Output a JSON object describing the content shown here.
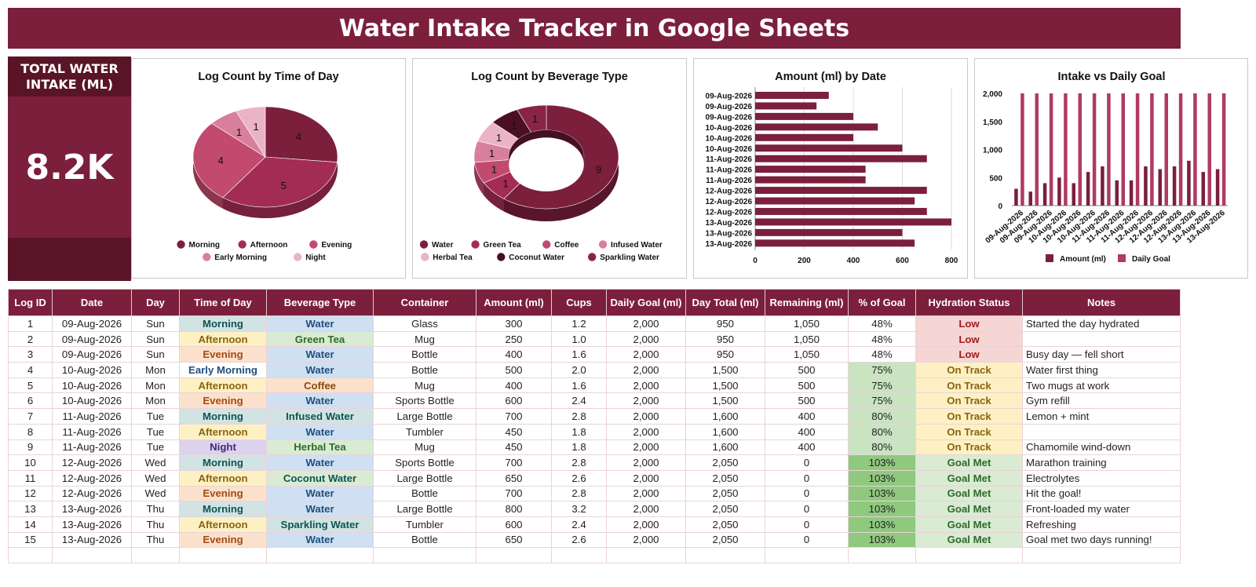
{
  "title": "Water Intake Tracker in Google Sheets",
  "kpi": {
    "label": "TOTAL WATER INTAKE (ML)",
    "value": "8.2K"
  },
  "colors": {
    "brand": "#7b1f3c",
    "brand_dark": "#5a1428",
    "series_amount": "#7b1f3c",
    "series_goal": "#b03a60"
  },
  "chart_data": [
    {
      "type": "pie",
      "title": "Log Count by Time of Day",
      "categories": [
        "Morning",
        "Afternoon",
        "Evening",
        "Early Morning",
        "Night"
      ],
      "values": [
        4,
        5,
        4,
        1,
        1
      ],
      "colors": [
        "#7b1f3c",
        "#a32c55",
        "#c14a6e",
        "#d77f9c",
        "#ebb4c6"
      ],
      "legend": "bottom"
    },
    {
      "type": "pie",
      "title": "Log Count by Beverage Type",
      "categories": [
        "Water",
        "Green Tea",
        "Coffee",
        "Infused Water",
        "Herbal Tea",
        "Coconut Water",
        "Sparkling Water"
      ],
      "values": [
        9,
        1,
        1,
        1,
        1,
        1,
        1
      ],
      "colors": [
        "#7b1f3c",
        "#a32c55",
        "#c14a6e",
        "#d77f9c",
        "#ebb4c6",
        "#4a0f22",
        "#8a2446"
      ],
      "donut": true,
      "legend": "bottom"
    },
    {
      "type": "bar",
      "orientation": "horizontal",
      "title": "Amount (ml) by Date",
      "categories": [
        "09-Aug-2026",
        "09-Aug-2026",
        "09-Aug-2026",
        "10-Aug-2026",
        "10-Aug-2026",
        "10-Aug-2026",
        "11-Aug-2026",
        "11-Aug-2026",
        "11-Aug-2026",
        "12-Aug-2026",
        "12-Aug-2026",
        "12-Aug-2026",
        "13-Aug-2026",
        "13-Aug-2026",
        "13-Aug-2026"
      ],
      "values": [
        300,
        250,
        400,
        500,
        400,
        600,
        700,
        450,
        450,
        700,
        650,
        700,
        800,
        600,
        650
      ],
      "xlim": [
        0,
        800
      ],
      "xticks": [
        "0",
        "200",
        "400",
        "600",
        "800"
      ],
      "grid": true
    },
    {
      "type": "bar",
      "title": "Intake vs Daily Goal",
      "categories": [
        "09-Aug-2026",
        "09-Aug-2026",
        "09-Aug-2026",
        "10-Aug-2026",
        "10-Aug-2026",
        "10-Aug-2026",
        "11-Aug-2026",
        "11-Aug-2026",
        "11-Aug-2026",
        "12-Aug-2026",
        "12-Aug-2026",
        "12-Aug-2026",
        "13-Aug-2026",
        "13-Aug-2026",
        "13-Aug-2026"
      ],
      "series": [
        {
          "name": "Amount (ml)",
          "values": [
            300,
            250,
            400,
            500,
            400,
            600,
            700,
            450,
            450,
            700,
            650,
            700,
            800,
            600,
            650
          ]
        },
        {
          "name": "Daily Goal",
          "values": [
            2000,
            2000,
            2000,
            2000,
            2000,
            2000,
            2000,
            2000,
            2000,
            2000,
            2000,
            2000,
            2000,
            2000,
            2000
          ]
        }
      ],
      "ylim": [
        0,
        2000
      ],
      "yticks": [
        "0",
        "500",
        "1,000",
        "1,500",
        "2,000"
      ],
      "legend": "bottom"
    }
  ],
  "table": {
    "headers": [
      "Log ID",
      "Date",
      "Day",
      "Time of Day",
      "Beverage Type",
      "Container",
      "Amount (ml)",
      "Cups",
      "Daily Goal (ml)",
      "Day Total (ml)",
      "Remaining (ml)",
      "% of Goal",
      "Hydration Status",
      "Notes"
    ],
    "rows": [
      [
        "1",
        "09-Aug-2026",
        "Sun",
        "Morning",
        "Water",
        "Glass",
        "300",
        "1.2",
        "2,000",
        "950",
        "1,050",
        "48%",
        "Low",
        "Started the day hydrated"
      ],
      [
        "2",
        "09-Aug-2026",
        "Sun",
        "Afternoon",
        "Green Tea",
        "Mug",
        "250",
        "1.0",
        "2,000",
        "950",
        "1,050",
        "48%",
        "Low",
        ""
      ],
      [
        "3",
        "09-Aug-2026",
        "Sun",
        "Evening",
        "Water",
        "Bottle",
        "400",
        "1.6",
        "2,000",
        "950",
        "1,050",
        "48%",
        "Low",
        "Busy day — fell short"
      ],
      [
        "4",
        "10-Aug-2026",
        "Mon",
        "Early Morning",
        "Water",
        "Bottle",
        "500",
        "2.0",
        "2,000",
        "1,500",
        "500",
        "75%",
        "On Track",
        "Water first thing"
      ],
      [
        "5",
        "10-Aug-2026",
        "Mon",
        "Afternoon",
        "Coffee",
        "Mug",
        "400",
        "1.6",
        "2,000",
        "1,500",
        "500",
        "75%",
        "On Track",
        "Two mugs at work"
      ],
      [
        "6",
        "10-Aug-2026",
        "Mon",
        "Evening",
        "Water",
        "Sports Bottle",
        "600",
        "2.4",
        "2,000",
        "1,500",
        "500",
        "75%",
        "On Track",
        "Gym refill"
      ],
      [
        "7",
        "11-Aug-2026",
        "Tue",
        "Morning",
        "Infused Water",
        "Large Bottle",
        "700",
        "2.8",
        "2,000",
        "1,600",
        "400",
        "80%",
        "On Track",
        "Lemon + mint"
      ],
      [
        "8",
        "11-Aug-2026",
        "Tue",
        "Afternoon",
        "Water",
        "Tumbler",
        "450",
        "1.8",
        "2,000",
        "1,600",
        "400",
        "80%",
        "On Track",
        ""
      ],
      [
        "9",
        "11-Aug-2026",
        "Tue",
        "Night",
        "Herbal Tea",
        "Mug",
        "450",
        "1.8",
        "2,000",
        "1,600",
        "400",
        "80%",
        "On Track",
        "Chamomile wind-down"
      ],
      [
        "10",
        "12-Aug-2026",
        "Wed",
        "Morning",
        "Water",
        "Sports Bottle",
        "700",
        "2.8",
        "2,000",
        "2,050",
        "0",
        "103%",
        "Goal Met",
        "Marathon training"
      ],
      [
        "11",
        "12-Aug-2026",
        "Wed",
        "Afternoon",
        "Coconut Water",
        "Large Bottle",
        "650",
        "2.6",
        "2,000",
        "2,050",
        "0",
        "103%",
        "Goal Met",
        "Electrolytes"
      ],
      [
        "12",
        "12-Aug-2026",
        "Wed",
        "Evening",
        "Water",
        "Bottle",
        "700",
        "2.8",
        "2,000",
        "2,050",
        "0",
        "103%",
        "Goal Met",
        "Hit the goal!"
      ],
      [
        "13",
        "13-Aug-2026",
        "Thu",
        "Morning",
        "Water",
        "Large Bottle",
        "800",
        "3.2",
        "2,000",
        "2,050",
        "0",
        "103%",
        "Goal Met",
        "Front-loaded my water"
      ],
      [
        "14",
        "13-Aug-2026",
        "Thu",
        "Afternoon",
        "Sparkling Water",
        "Tumbler",
        "600",
        "2.4",
        "2,000",
        "2,050",
        "0",
        "103%",
        "Goal Met",
        "Refreshing"
      ],
      [
        "15",
        "13-Aug-2026",
        "Thu",
        "Evening",
        "Water",
        "Bottle",
        "650",
        "2.6",
        "2,000",
        "2,050",
        "0",
        "103%",
        "Goal Met",
        "Goal met two days running!"
      ]
    ],
    "styles": {
      "time_of_day": {
        "Morning": {
          "bg": "#d2e3e3",
          "fg": "#0f5454"
        },
        "Afternoon": {
          "bg": "#fdf1c4",
          "fg": "#8a6310"
        },
        "Evening": {
          "bg": "#fbe1cc",
          "fg": "#a34a12"
        },
        "Early Morning": {
          "bg": "#ffffff",
          "fg": "#1f4f7c"
        },
        "Night": {
          "bg": "#dcd2ec",
          "fg": "#3f2a7a"
        }
      },
      "beverage": {
        "Water": {
          "bg": "#cfe0f3",
          "fg": "#1f4f7c"
        },
        "Green Tea": {
          "bg": "#d9ebd3",
          "fg": "#2e6b2a"
        },
        "Coffee": {
          "bg": "#fbe1cc",
          "fg": "#8a4a12"
        },
        "Infused Water": {
          "bg": "#d2e3e3",
          "fg": "#0f5454"
        },
        "Herbal Tea": {
          "bg": "#d9ebd3",
          "fg": "#2e6b2a"
        },
        "Coconut Water": {
          "bg": "#d9ebd3",
          "fg": "#0f5454"
        },
        "Sparkling Water": {
          "bg": "#d2e3e3",
          "fg": "#0f5454"
        }
      },
      "status": {
        "Low": {
          "bg": "#f6d5d5",
          "fg": "#a31c1c"
        },
        "On Track": {
          "bg": "#fdf1c4",
          "fg": "#8a6310"
        },
        "Goal Met": {
          "bg": "#d9ebd3",
          "fg": "#2e6b2a"
        }
      },
      "goal_pct": {
        "48%": "#ffffff",
        "75%": "#c9e4c0",
        "80%": "#c9e4c0",
        "103%": "#8fc97e"
      }
    }
  }
}
